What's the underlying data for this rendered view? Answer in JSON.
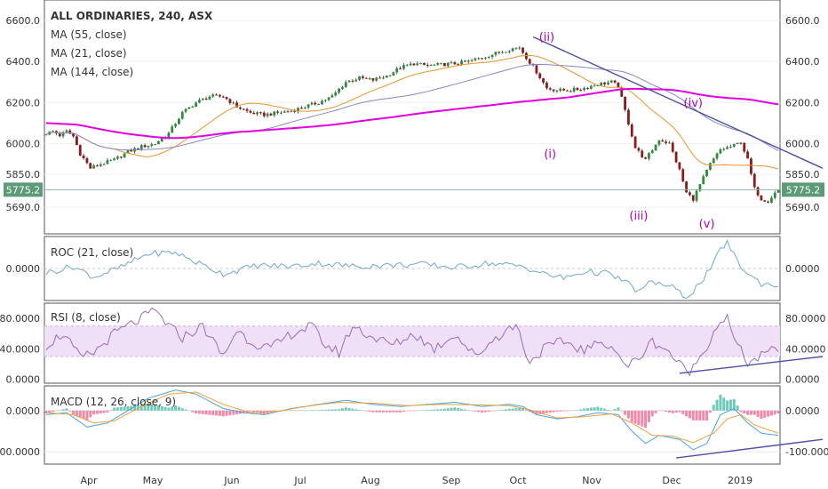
{
  "chart_data": [
    {
      "type": "candlestick",
      "title": "ALL ORDINARIES, 240, ASX",
      "overlays": [
        "MA (55, close)",
        "MA (21, close)",
        "MA (144, close)"
      ],
      "y_ticks": [
        "6600.0",
        "6400.0",
        "6200.0",
        "6000.0",
        "5850.0",
        "5690.0"
      ],
      "y_tick_values": [
        6600,
        6400,
        6200,
        6000,
        5850,
        5690
      ],
      "last_price": "5775.2",
      "last_price_value": 5775.2,
      "x_ticks": [
        "Apr",
        "May",
        "Jun",
        "Jul",
        "Aug",
        "Sep",
        "Oct",
        "Nov",
        "Dec",
        "2019"
      ],
      "wave_labels": [
        "(i)",
        "(ii)",
        "(iii)",
        "(iv)",
        "(v)"
      ],
      "close_anchors": [
        [
          0,
          6050
        ],
        [
          2,
          6060
        ],
        [
          4,
          6040
        ],
        [
          6,
          6060
        ],
        [
          8,
          6035
        ],
        [
          10,
          5950
        ],
        [
          13,
          5880
        ],
        [
          16,
          5900
        ],
        [
          20,
          5920
        ],
        [
          24,
          5960
        ],
        [
          28,
          5985
        ],
        [
          32,
          6000
        ],
        [
          36,
          6050
        ],
        [
          40,
          6150
        ],
        [
          44,
          6200
        ],
        [
          48,
          6230
        ],
        [
          52,
          6230
        ],
        [
          56,
          6180
        ],
        [
          60,
          6150
        ],
        [
          64,
          6140
        ],
        [
          68,
          6150
        ],
        [
          72,
          6160
        ],
        [
          76,
          6180
        ],
        [
          80,
          6200
        ],
        [
          84,
          6230
        ],
        [
          88,
          6300
        ],
        [
          92,
          6320
        ],
        [
          96,
          6310
        ],
        [
          100,
          6330
        ],
        [
          104,
          6370
        ],
        [
          108,
          6390
        ],
        [
          112,
          6380
        ],
        [
          116,
          6385
        ],
        [
          120,
          6390
        ],
        [
          124,
          6400
        ],
        [
          128,
          6420
        ],
        [
          132,
          6440
        ],
        [
          136,
          6460
        ],
        [
          139,
          6470
        ],
        [
          141,
          6420
        ],
        [
          144,
          6350
        ],
        [
          147,
          6270
        ],
        [
          150,
          6260
        ],
        [
          154,
          6260
        ],
        [
          158,
          6270
        ],
        [
          162,
          6290
        ],
        [
          166,
          6300
        ],
        [
          168,
          6280
        ],
        [
          170,
          6160
        ],
        [
          173,
          5980
        ],
        [
          176,
          5920
        ],
        [
          180,
          6020
        ],
        [
          183,
          6000
        ],
        [
          186,
          5870
        ],
        [
          188,
          5760
        ],
        [
          190,
          5730
        ],
        [
          192,
          5800
        ],
        [
          195,
          5900
        ],
        [
          198,
          5970
        ],
        [
          202,
          5990
        ],
        [
          204,
          6010
        ],
        [
          206,
          5920
        ],
        [
          208,
          5780
        ],
        [
          210,
          5730
        ],
        [
          212,
          5720
        ],
        [
          214,
          5760
        ],
        [
          215,
          5775
        ]
      ],
      "ylim": [
        5560,
        6700
      ]
    },
    {
      "type": "line",
      "title": "ROC (21, close)",
      "y_ticks": [
        "0.0000"
      ],
      "y_tick_values": [
        0
      ],
      "series_anchors": [
        [
          0,
          -0.4
        ],
        [
          8,
          0.2
        ],
        [
          14,
          -0.8
        ],
        [
          22,
          0.1
        ],
        [
          30,
          1.4
        ],
        [
          38,
          1.5
        ],
        [
          44,
          0.6
        ],
        [
          52,
          -0.5
        ],
        [
          62,
          0.3
        ],
        [
          72,
          0.2
        ],
        [
          80,
          0.5
        ],
        [
          90,
          0.2
        ],
        [
          100,
          0.3
        ],
        [
          110,
          0.4
        ],
        [
          120,
          0.1
        ],
        [
          130,
          0.5
        ],
        [
          140,
          0.2
        ],
        [
          146,
          -0.5
        ],
        [
          152,
          -0.9
        ],
        [
          158,
          -0.3
        ],
        [
          164,
          -0.4
        ],
        [
          170,
          -1.2
        ],
        [
          174,
          -2.2
        ],
        [
          178,
          -1.2
        ],
        [
          184,
          -1.8
        ],
        [
          188,
          -2.7
        ],
        [
          192,
          -1.4
        ],
        [
          196,
          0.4
        ],
        [
          198,
          1.8
        ],
        [
          200,
          2.5
        ],
        [
          202,
          1.2
        ],
        [
          204,
          0.2
        ],
        [
          206,
          -0.5
        ],
        [
          210,
          -1.4
        ],
        [
          215,
          -1.6
        ]
      ],
      "ylim": [
        -3,
        3
      ]
    },
    {
      "type": "line",
      "title": "RSI (8, close)",
      "y_ticks": [
        "80.0000",
        "40.0000",
        "0.0000"
      ],
      "y_tick_values": [
        80,
        40,
        0
      ],
      "band": [
        30,
        70
      ],
      "series_anchors": [
        [
          0,
          45
        ],
        [
          5,
          60
        ],
        [
          10,
          28
        ],
        [
          14,
          35
        ],
        [
          20,
          60
        ],
        [
          26,
          75
        ],
        [
          32,
          90
        ],
        [
          36,
          70
        ],
        [
          40,
          55
        ],
        [
          46,
          70
        ],
        [
          52,
          30
        ],
        [
          56,
          65
        ],
        [
          60,
          50
        ],
        [
          66,
          40
        ],
        [
          72,
          60
        ],
        [
          78,
          70
        ],
        [
          82,
          45
        ],
        [
          86,
          35
        ],
        [
          90,
          70
        ],
        [
          96,
          55
        ],
        [
          102,
          45
        ],
        [
          108,
          60
        ],
        [
          114,
          40
        ],
        [
          120,
          60
        ],
        [
          126,
          30
        ],
        [
          132,
          55
        ],
        [
          138,
          72
        ],
        [
          142,
          22
        ],
        [
          146,
          40
        ],
        [
          152,
          50
        ],
        [
          158,
          38
        ],
        [
          164,
          50
        ],
        [
          168,
          35
        ],
        [
          170,
          15
        ],
        [
          174,
          28
        ],
        [
          178,
          50
        ],
        [
          182,
          40
        ],
        [
          186,
          20
        ],
        [
          188,
          10
        ],
        [
          190,
          15
        ],
        [
          194,
          45
        ],
        [
          198,
          78
        ],
        [
          200,
          80
        ],
        [
          202,
          52
        ],
        [
          206,
          22
        ],
        [
          210,
          30
        ],
        [
          215,
          42
        ]
      ],
      "ylim": [
        -5,
        100
      ]
    },
    {
      "type": "line",
      "title": "MACD (12, 26, close, 9)",
      "y_ticks": [
        "0.0000",
        "-100.0000"
      ],
      "y_tick_values": [
        0,
        -100
      ],
      "macd_anchors": [
        [
          0,
          -10
        ],
        [
          6,
          -5
        ],
        [
          12,
          -40
        ],
        [
          18,
          -30
        ],
        [
          24,
          0
        ],
        [
          30,
          30
        ],
        [
          38,
          50
        ],
        [
          44,
          40
        ],
        [
          52,
          5
        ],
        [
          58,
          -5
        ],
        [
          64,
          -10
        ],
        [
          72,
          5
        ],
        [
          80,
          15
        ],
        [
          88,
          25
        ],
        [
          96,
          15
        ],
        [
          104,
          10
        ],
        [
          112,
          15
        ],
        [
          120,
          20
        ],
        [
          128,
          10
        ],
        [
          136,
          15
        ],
        [
          140,
          10
        ],
        [
          144,
          -10
        ],
        [
          150,
          -20
        ],
        [
          156,
          -15
        ],
        [
          162,
          -5
        ],
        [
          168,
          -10
        ],
        [
          172,
          -50
        ],
        [
          176,
          -80
        ],
        [
          180,
          -60
        ],
        [
          186,
          -70
        ],
        [
          190,
          -95
        ],
        [
          194,
          -80
        ],
        [
          198,
          -10
        ],
        [
          202,
          5
        ],
        [
          206,
          -30
        ],
        [
          210,
          -55
        ],
        [
          215,
          -60
        ]
      ],
      "signal_anchors": [
        [
          0,
          -5
        ],
        [
          8,
          -10
        ],
        [
          14,
          -30
        ],
        [
          20,
          -25
        ],
        [
          28,
          10
        ],
        [
          36,
          40
        ],
        [
          44,
          45
        ],
        [
          52,
          15
        ],
        [
          60,
          -5
        ],
        [
          68,
          -2
        ],
        [
          76,
          10
        ],
        [
          86,
          20
        ],
        [
          96,
          18
        ],
        [
          106,
          12
        ],
        [
          116,
          15
        ],
        [
          126,
          14
        ],
        [
          136,
          12
        ],
        [
          142,
          2
        ],
        [
          150,
          -18
        ],
        [
          158,
          -15
        ],
        [
          166,
          -8
        ],
        [
          172,
          -30
        ],
        [
          178,
          -60
        ],
        [
          184,
          -62
        ],
        [
          190,
          -78
        ],
        [
          196,
          -55
        ],
        [
          200,
          -20
        ],
        [
          204,
          -10
        ],
        [
          208,
          -35
        ],
        [
          215,
          -55
        ]
      ],
      "ylim": [
        -130,
        60
      ]
    }
  ]
}
